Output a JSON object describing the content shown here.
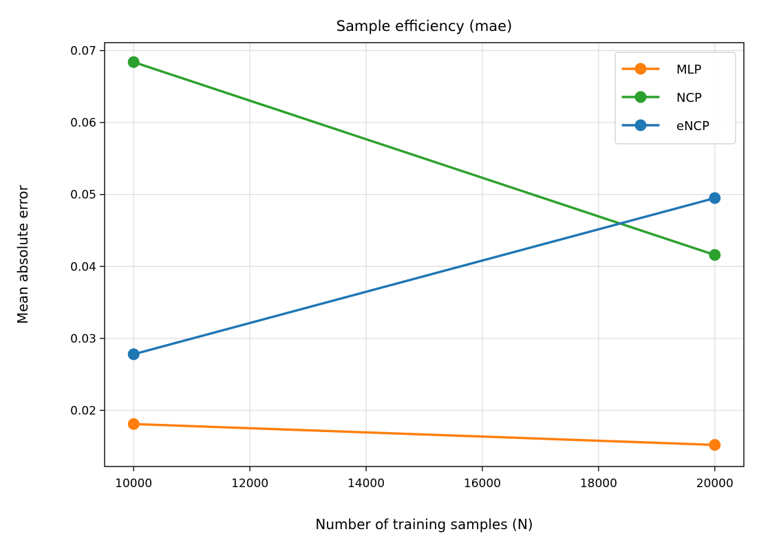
{
  "chart_data": {
    "type": "line",
    "title": "Sample efficiency (mae)",
    "xlabel": "Number of training samples (N)",
    "ylabel": "Mean absolute error",
    "xlim": [
      9500,
      20500
    ],
    "ylim": [
      0.0122,
      0.0711
    ],
    "x_ticks": [
      10000,
      12000,
      14000,
      16000,
      18000,
      20000
    ],
    "y_ticks": [
      0.02,
      0.03,
      0.04,
      0.05,
      0.06,
      0.07
    ],
    "x_tick_labels": [
      "10000",
      "12000",
      "14000",
      "16000",
      "18000",
      "20000"
    ],
    "y_tick_labels": [
      "0.02",
      "0.03",
      "0.04",
      "0.05",
      "0.06",
      "0.07"
    ],
    "grid": true,
    "legend_position": "top-right",
    "x": [
      10000,
      20000
    ],
    "series": [
      {
        "name": "MLP",
        "color": "#ff7f0e",
        "values": [
          0.0181,
          0.0152
        ]
      },
      {
        "name": "NCP",
        "color": "#2ca02c",
        "values": [
          0.0684,
          0.0416
        ]
      },
      {
        "name": "eNCP",
        "color": "#1f77b4",
        "values": [
          0.0278,
          0.0495
        ]
      }
    ]
  }
}
